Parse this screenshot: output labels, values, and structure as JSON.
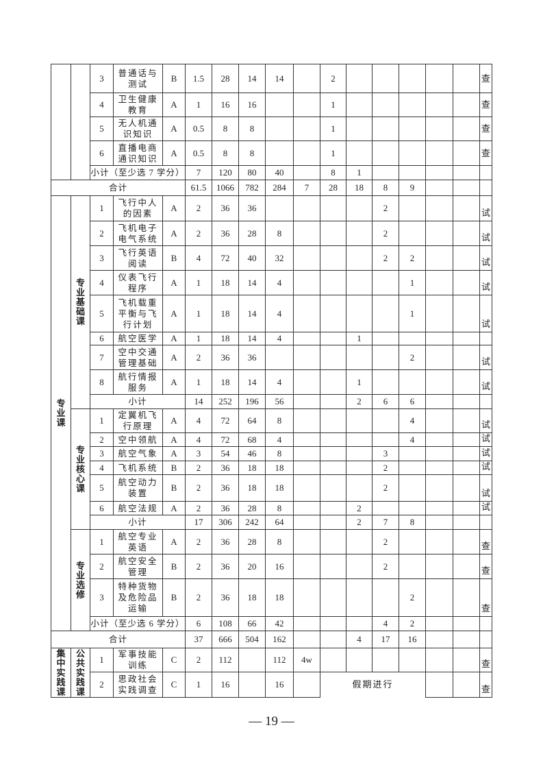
{
  "section_top": {
    "rows": [
      {
        "no": "3",
        "name": "普通话与测试",
        "type": "B",
        "credits": "1.5",
        "total": "28",
        "theory": "14",
        "practice": "14",
        "sem": [
          "",
          "2",
          "",
          "",
          "",
          "",
          ""
        ],
        "exam": "查"
      },
      {
        "no": "4",
        "name": "卫生健康教育",
        "type": "A",
        "credits": "1",
        "total": "16",
        "theory": "16",
        "practice": "",
        "sem": [
          "",
          "1",
          "",
          "",
          "",
          "",
          ""
        ],
        "exam": "查"
      },
      {
        "no": "5",
        "name": "无人机通识知识",
        "type": "A",
        "credits": "0.5",
        "total": "8",
        "theory": "8",
        "practice": "",
        "sem": [
          "",
          "1",
          "",
          "",
          "",
          "",
          ""
        ],
        "exam": "查"
      },
      {
        "no": "6",
        "name": "直播电商通识知识",
        "type": "A",
        "credits": "0.5",
        "total": "8",
        "theory": "8",
        "practice": "",
        "sem": [
          "",
          "1",
          "",
          "",
          "",
          "",
          ""
        ],
        "exam": "查"
      }
    ],
    "subtotal": {
      "label": "小计（至少选 7 学分）",
      "credits": "7",
      "total": "120",
      "theory": "80",
      "practice": "40",
      "sem": [
        "",
        "8",
        "1",
        "",
        "",
        "",
        ""
      ],
      "exam": ""
    },
    "total": {
      "label": "合计",
      "credits": "61.5",
      "total": "1066",
      "theory": "782",
      "practice": "284",
      "sem": [
        "7",
        "28",
        "18",
        "8",
        "9",
        "",
        ""
      ],
      "exam": ""
    }
  },
  "professional": {
    "label": "专业课",
    "groups": [
      {
        "label": "专业基础课",
        "rows": [
          {
            "no": "1",
            "name": "飞行中人的因素",
            "type": "A",
            "credits": "2",
            "total": "36",
            "theory": "36",
            "practice": "",
            "sem": [
              "",
              "",
              "",
              "2",
              "",
              "",
              ""
            ],
            "exam": "试"
          },
          {
            "no": "2",
            "name": "飞机电子电气系统",
            "type": "A",
            "credits": "2",
            "total": "36",
            "theory": "28",
            "practice": "8",
            "sem": [
              "",
              "",
              "",
              "2",
              "",
              "",
              ""
            ],
            "exam": "试"
          },
          {
            "no": "3",
            "name": "飞行英语阅读",
            "type": "B",
            "credits": "4",
            "total": "72",
            "theory": "40",
            "practice": "32",
            "sem": [
              "",
              "",
              "",
              "2",
              "2",
              "",
              ""
            ],
            "exam": "试"
          },
          {
            "no": "4",
            "name": "仪表飞行程序",
            "type": "A",
            "credits": "1",
            "total": "18",
            "theory": "14",
            "practice": "4",
            "sem": [
              "",
              "",
              "",
              "",
              "1",
              "",
              ""
            ],
            "exam": "试"
          },
          {
            "no": "5",
            "name": "飞机载重平衡与飞行计划",
            "type": "A",
            "credits": "1",
            "total": "18",
            "theory": "14",
            "practice": "4",
            "sem": [
              "",
              "",
              "",
              "",
              "1",
              "",
              ""
            ],
            "exam": "试"
          },
          {
            "no": "6",
            "name": "航空医学",
            "type": "A",
            "credits": "1",
            "total": "18",
            "theory": "14",
            "practice": "4",
            "sem": [
              "",
              "",
              "1",
              "",
              "",
              "",
              ""
            ],
            "exam": ""
          },
          {
            "no": "7",
            "name": "空中交通管理基础",
            "type": "A",
            "credits": "2",
            "total": "36",
            "theory": "36",
            "practice": "",
            "sem": [
              "",
              "",
              "",
              "",
              "2",
              "",
              ""
            ],
            "exam": "试"
          },
          {
            "no": "8",
            "name": "航行情报服务",
            "type": "A",
            "credits": "1",
            "total": "18",
            "theory": "14",
            "practice": "4",
            "sem": [
              "",
              "",
              "1",
              "",
              "",
              "",
              ""
            ],
            "exam": "试"
          }
        ],
        "subtotal": {
          "label": "小计",
          "credits": "14",
          "total": "252",
          "theory": "196",
          "practice": "56",
          "sem": [
            "",
            "",
            "2",
            "6",
            "6",
            "",
            ""
          ],
          "exam": ""
        }
      },
      {
        "label": "专业核心课",
        "rows": [
          {
            "no": "1",
            "name": "定翼机飞行原理",
            "type": "A",
            "credits": "4",
            "total": "72",
            "theory": "64",
            "practice": "8",
            "sem": [
              "",
              "",
              "",
              "",
              "4",
              "",
              ""
            ],
            "exam": "试"
          },
          {
            "no": "2",
            "name": "空中领航",
            "type": "A",
            "credits": "4",
            "total": "72",
            "theory": "68",
            "practice": "4",
            "sem": [
              "",
              "",
              "",
              "",
              "4",
              "",
              ""
            ],
            "exam": "试"
          },
          {
            "no": "3",
            "name": "航空气象",
            "type": "A",
            "credits": "3",
            "total": "54",
            "theory": "46",
            "practice": "8",
            "sem": [
              "",
              "",
              "",
              "3",
              "",
              "",
              ""
            ],
            "exam": "试"
          },
          {
            "no": "4",
            "name": "飞机系统",
            "type": "B",
            "credits": "2",
            "total": "36",
            "theory": "18",
            "practice": "18",
            "sem": [
              "",
              "",
              "",
              "2",
              "",
              "",
              ""
            ],
            "exam": "试"
          },
          {
            "no": "5",
            "name": "航空动力装置",
            "type": "B",
            "credits": "2",
            "total": "36",
            "theory": "18",
            "practice": "18",
            "sem": [
              "",
              "",
              "",
              "2",
              "",
              "",
              ""
            ],
            "exam": "试"
          },
          {
            "no": "6",
            "name": "航空法规",
            "type": "A",
            "credits": "2",
            "total": "36",
            "theory": "28",
            "practice": "8",
            "sem": [
              "",
              "",
              "2",
              "",
              "",
              "",
              ""
            ],
            "exam": "试"
          }
        ],
        "subtotal": {
          "label": "小计",
          "credits": "17",
          "total": "306",
          "theory": "242",
          "practice": "64",
          "sem": [
            "",
            "",
            "2",
            "7",
            "8",
            "",
            ""
          ],
          "exam": ""
        }
      },
      {
        "label": "专业选修",
        "rows": [
          {
            "no": "1",
            "name": "航空专业英语",
            "type": "A",
            "credits": "2",
            "total": "36",
            "theory": "28",
            "practice": "8",
            "sem": [
              "",
              "",
              "",
              "2",
              "",
              "",
              ""
            ],
            "exam": "查"
          },
          {
            "no": "2",
            "name": "航空安全管理",
            "type": "B",
            "credits": "2",
            "total": "36",
            "theory": "20",
            "practice": "16",
            "sem": [
              "",
              "",
              "",
              "2",
              "",
              "",
              ""
            ],
            "exam": "查"
          },
          {
            "no": "3",
            "name": "特种货物及危险品运输",
            "type": "B",
            "credits": "2",
            "total": "36",
            "theory": "18",
            "practice": "18",
            "sem": [
              "",
              "",
              "",
              "",
              "2",
              "",
              ""
            ],
            "exam": "查"
          }
        ],
        "subtotal": {
          "label": "小计（至少选 6 学分）",
          "credits": "6",
          "total": "108",
          "theory": "66",
          "practice": "42",
          "sem": [
            "",
            "",
            "",
            "4",
            "2",
            "",
            ""
          ],
          "exam": ""
        }
      }
    ],
    "total": {
      "label": "合计",
      "credits": "37",
      "total": "666",
      "theory": "504",
      "practice": "162",
      "sem": [
        "",
        "",
        "4",
        "17",
        "16",
        "",
        ""
      ],
      "exam": ""
    }
  },
  "practice": {
    "label": "集中实践课",
    "group_label": "公共实践课",
    "rows": [
      {
        "no": "1",
        "name": "军事技能训练",
        "type": "C",
        "credits": "2",
        "total": "112",
        "theory": "",
        "practice": "112",
        "sem": [
          "4w",
          "",
          "",
          "",
          "",
          "",
          ""
        ],
        "exam": "查"
      },
      {
        "no": "2",
        "name": "思政社会实践调查",
        "type": "C",
        "credits": "1",
        "total": "16",
        "theory": "",
        "practice": "16",
        "sem": [
          ""
        ],
        "holiday": "假期进行",
        "sem_after": [
          "",
          ""
        ],
        "exam": "查"
      }
    ]
  },
  "footer": {
    "page_number": "— 19 —"
  }
}
